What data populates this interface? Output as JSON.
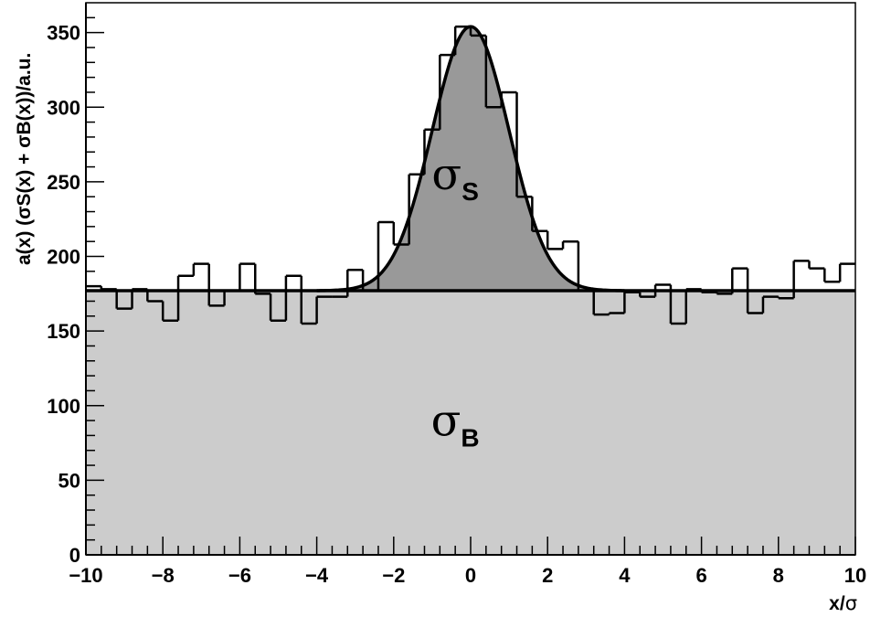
{
  "chart_data": {
    "type": "bar",
    "xlabel_main": "x/",
    "xlabel_sym": "σ",
    "ylabel_text": "a(x) (σS(x) + σB(x))/a.u.",
    "xlim": [
      -10,
      10
    ],
    "ylim": [
      0,
      370
    ],
    "x_ticks": [
      "−10",
      "−8",
      "−6",
      "−4",
      "−2",
      "0",
      "2",
      "4",
      "6",
      "8",
      "10"
    ],
    "y_ticks": [
      "0",
      "50",
      "100",
      "150",
      "200",
      "250",
      "300",
      "350"
    ],
    "background_level": 177,
    "signal": {
      "mean": 0,
      "sigma": 1,
      "amplitude": 177
    },
    "bin_width": 0.4,
    "histogram": [
      {
        "x": -10.0,
        "y": 180
      },
      {
        "x": -9.6,
        "y": 178
      },
      {
        "x": -9.2,
        "y": 165
      },
      {
        "x": -8.8,
        "y": 178
      },
      {
        "x": -8.4,
        "y": 170
      },
      {
        "x": -8.0,
        "y": 157
      },
      {
        "x": -7.6,
        "y": 187
      },
      {
        "x": -7.2,
        "y": 195
      },
      {
        "x": -6.8,
        "y": 167
      },
      {
        "x": -6.4,
        "y": 177
      },
      {
        "x": -6.0,
        "y": 195
      },
      {
        "x": -5.6,
        "y": 175
      },
      {
        "x": -5.2,
        "y": 157
      },
      {
        "x": -4.8,
        "y": 187
      },
      {
        "x": -4.4,
        "y": 155
      },
      {
        "x": -4.0,
        "y": 173
      },
      {
        "x": -3.6,
        "y": 173
      },
      {
        "x": -3.2,
        "y": 191
      },
      {
        "x": -2.8,
        "y": 177
      },
      {
        "x": -2.4,
        "y": 223
      },
      {
        "x": -2.0,
        "y": 208
      },
      {
        "x": -1.6,
        "y": 255
      },
      {
        "x": -1.2,
        "y": 285
      },
      {
        "x": -0.8,
        "y": 335
      },
      {
        "x": -0.4,
        "y": 354
      },
      {
        "x": 0.0,
        "y": 348
      },
      {
        "x": 0.4,
        "y": 300
      },
      {
        "x": 0.8,
        "y": 310
      },
      {
        "x": 1.2,
        "y": 240
      },
      {
        "x": 1.6,
        "y": 217
      },
      {
        "x": 2.0,
        "y": 205
      },
      {
        "x": 2.4,
        "y": 210
      },
      {
        "x": 2.8,
        "y": 177
      },
      {
        "x": 3.2,
        "y": 161
      },
      {
        "x": 3.6,
        "y": 162
      },
      {
        "x": 4.0,
        "y": 176
      },
      {
        "x": 4.4,
        "y": 173
      },
      {
        "x": 4.8,
        "y": 181
      },
      {
        "x": 5.2,
        "y": 155
      },
      {
        "x": 5.6,
        "y": 178
      },
      {
        "x": 6.0,
        "y": 176
      },
      {
        "x": 6.4,
        "y": 175
      },
      {
        "x": 6.8,
        "y": 192
      },
      {
        "x": 7.2,
        "y": 162
      },
      {
        "x": 7.6,
        "y": 173
      },
      {
        "x": 8.0,
        "y": 172
      },
      {
        "x": 8.4,
        "y": 197
      },
      {
        "x": 8.8,
        "y": 192
      },
      {
        "x": 9.2,
        "y": 183
      },
      {
        "x": 9.6,
        "y": 195
      }
    ],
    "region_labels": {
      "signal": {
        "symbol": "σ",
        "sub": "S",
        "x": -0.4,
        "y": 245
      },
      "background": {
        "symbol": "σ",
        "sub": "B",
        "x": -0.4,
        "y": 80
      }
    },
    "colors": {
      "background_fill": "#cccccc",
      "signal_fill": "#999999",
      "line": "#000000"
    },
    "grid": false,
    "legend": "none"
  }
}
